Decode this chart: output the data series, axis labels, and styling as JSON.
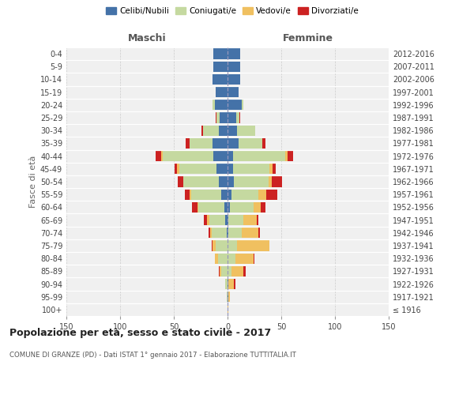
{
  "age_groups": [
    "100+",
    "95-99",
    "90-94",
    "85-89",
    "80-84",
    "75-79",
    "70-74",
    "65-69",
    "60-64",
    "55-59",
    "50-54",
    "45-49",
    "40-44",
    "35-39",
    "30-34",
    "25-29",
    "20-24",
    "15-19",
    "10-14",
    "5-9",
    "0-4"
  ],
  "birth_years": [
    "≤ 1916",
    "1917-1921",
    "1922-1926",
    "1927-1931",
    "1932-1936",
    "1937-1941",
    "1942-1946",
    "1947-1951",
    "1952-1956",
    "1957-1961",
    "1962-1966",
    "1967-1971",
    "1972-1976",
    "1977-1981",
    "1982-1986",
    "1987-1991",
    "1992-1996",
    "1997-2001",
    "2002-2006",
    "2007-2011",
    "2012-2016"
  ],
  "males_celibi": [
    0,
    0,
    0,
    0,
    0,
    0,
    1,
    2,
    3,
    6,
    8,
    10,
    13,
    14,
    8,
    7,
    12,
    11,
    14,
    13,
    13
  ],
  "males_coniugati": [
    0,
    1,
    2,
    6,
    9,
    11,
    14,
    15,
    24,
    28,
    33,
    35,
    47,
    21,
    15,
    3,
    2,
    0,
    0,
    0,
    0
  ],
  "males_vedovi": [
    0,
    0,
    0,
    1,
    3,
    3,
    1,
    2,
    1,
    1,
    0,
    2,
    2,
    0,
    0,
    0,
    0,
    0,
    0,
    0,
    0
  ],
  "males_divorziati": [
    0,
    0,
    0,
    1,
    0,
    1,
    2,
    3,
    5,
    5,
    5,
    2,
    5,
    4,
    1,
    1,
    0,
    0,
    0,
    0,
    0
  ],
  "females_nubili": [
    0,
    1,
    1,
    0,
    0,
    0,
    1,
    1,
    2,
    4,
    6,
    5,
    5,
    10,
    9,
    8,
    13,
    10,
    12,
    12,
    12
  ],
  "females_coniugate": [
    0,
    0,
    0,
    4,
    7,
    9,
    12,
    14,
    22,
    25,
    32,
    34,
    49,
    22,
    17,
    3,
    2,
    0,
    0,
    0,
    0
  ],
  "females_vedove": [
    1,
    1,
    5,
    11,
    17,
    30,
    16,
    12,
    7,
    7,
    3,
    3,
    2,
    0,
    0,
    0,
    0,
    0,
    0,
    0,
    0
  ],
  "females_divorziate": [
    0,
    0,
    1,
    2,
    1,
    0,
    1,
    2,
    4,
    10,
    10,
    3,
    5,
    3,
    0,
    1,
    0,
    0,
    0,
    0,
    0
  ],
  "colors_celibi": "#4472a8",
  "colors_coniugati": "#c5d9a0",
  "colors_vedovi": "#f0c060",
  "colors_divorziati": "#cc2222",
  "legend_labels": [
    "Celibi/Nubili",
    "Coniugati/e",
    "Vedovi/e",
    "Divorziati/e"
  ],
  "title": "Popolazione per età, sesso e stato civile - 2017",
  "subtitle": "COMUNE DI GRANZE (PD) - Dati ISTAT 1° gennaio 2017 - Elaborazione TUTTITALIA.IT",
  "ylabel_left": "Fasce di età",
  "label_maschi": "Maschi",
  "label_femmine": "Femmine",
  "xlim": 150,
  "bg_color": "#f0f0f0",
  "grid_color": "#cccccc"
}
